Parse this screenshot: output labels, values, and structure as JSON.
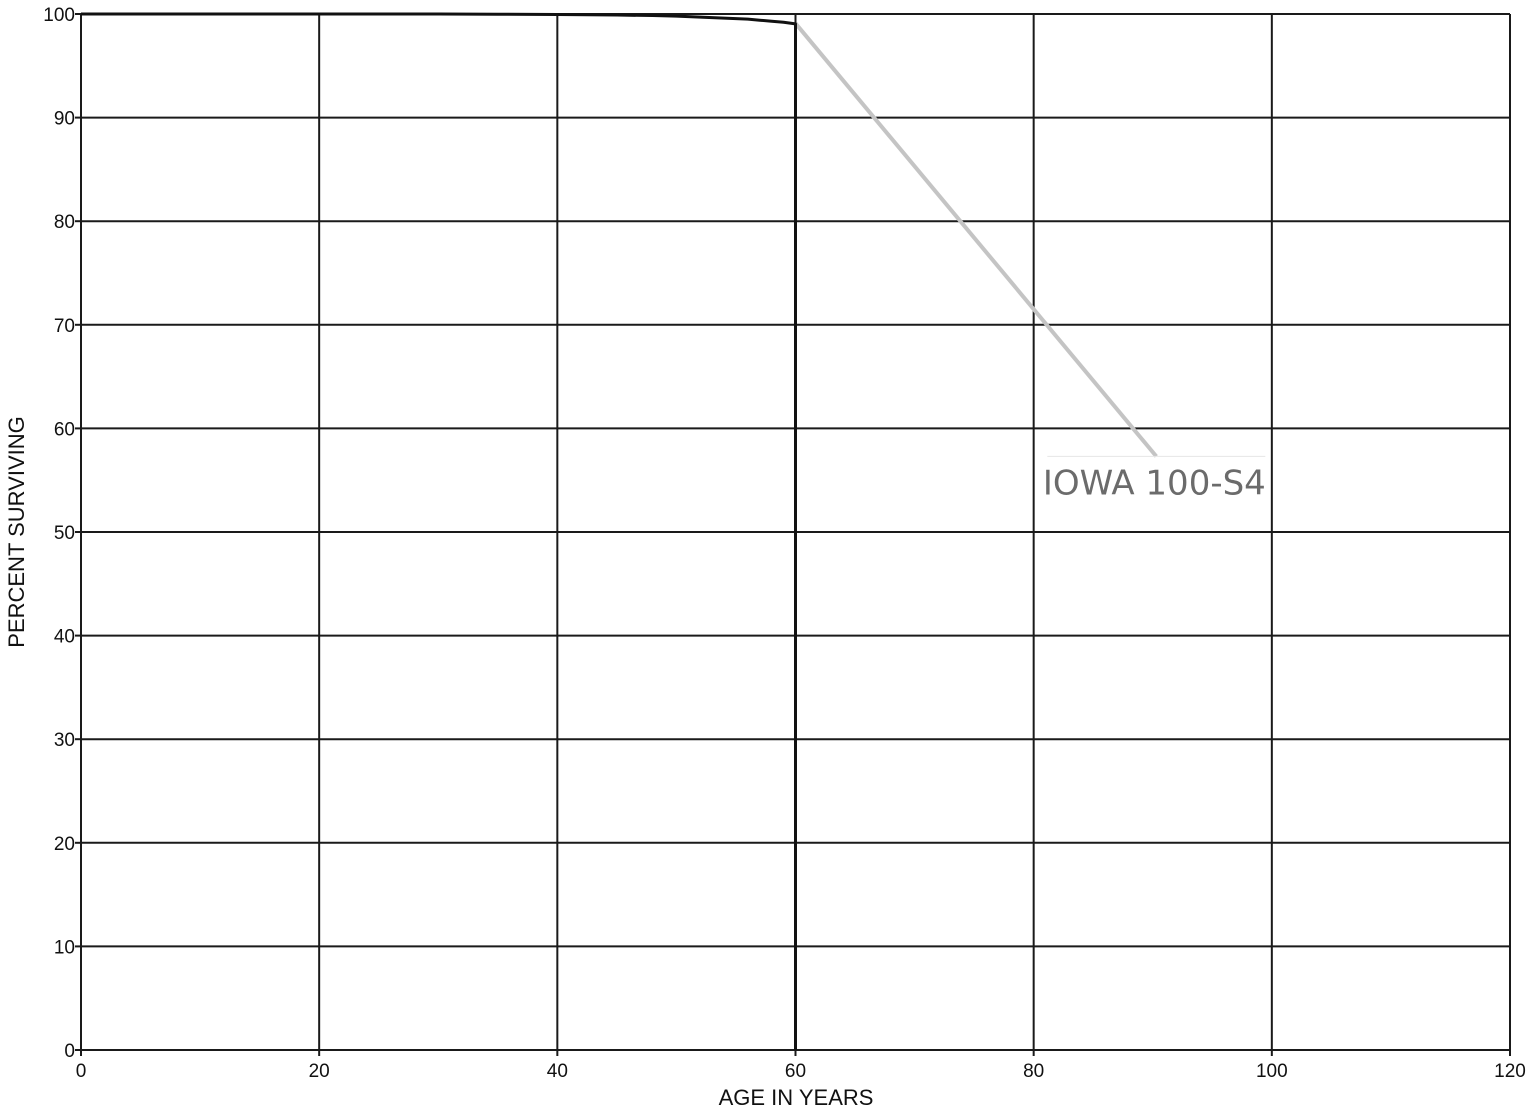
{
  "chart_data": {
    "type": "line",
    "title": "",
    "xlabel": "AGE IN YEARS",
    "ylabel": "PERCENT SURVIVING",
    "xlim": [
      0,
      120
    ],
    "ylim": [
      0,
      100
    ],
    "x_ticks": [
      "0",
      "20",
      "40",
      "60",
      "80",
      "100",
      "120"
    ],
    "y_ticks": [
      "0",
      "10",
      "20",
      "30",
      "40",
      "50",
      "60",
      "70",
      "80",
      "90",
      "100"
    ],
    "grid": true,
    "series": [
      {
        "color": "#111111",
        "x": [
          0,
          10,
          20,
          30,
          35,
          40,
          45,
          48,
          50,
          52,
          54,
          56,
          57,
          58,
          59,
          60,
          60,
          60
        ],
        "y": [
          100,
          100,
          100,
          100,
          99.98,
          99.95,
          99.9,
          99.85,
          99.8,
          99.7,
          99.6,
          99.5,
          99.4,
          99.3,
          99.2,
          99.05,
          50,
          0
        ]
      }
    ],
    "annotations": [
      {
        "text": "IOWA 100-S4",
        "color": "#6b6b6b",
        "leader_color": "#c4c4c4",
        "leader_from": [
          60,
          99.1
        ],
        "leader_to": [
          90.3,
          57.3
        ]
      }
    ]
  }
}
